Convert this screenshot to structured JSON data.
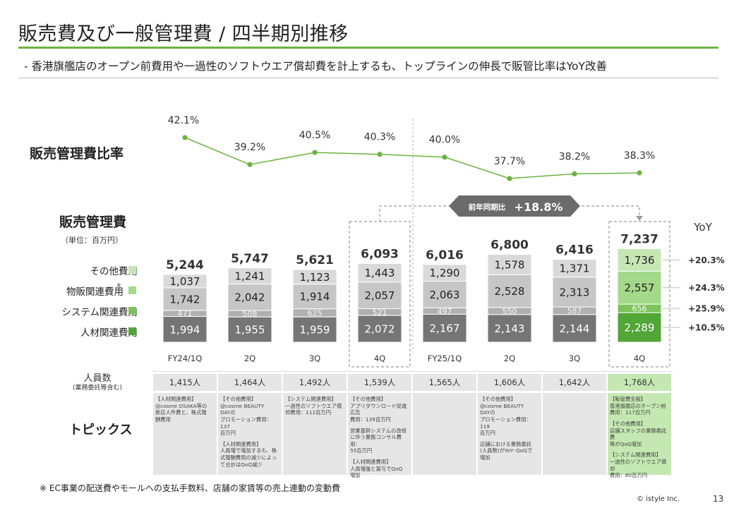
{
  "header": {
    "title": "販売費及び一般管理費 / 四半期別推移",
    "subtitle": "-  香港旗艦店のオープン前費用や一過性のソフトウエア償却費を計上するも、トップラインの伸長で販管比率はYoY改善"
  },
  "labels": {
    "ratio_section": "販売管理費比率",
    "sga_section": "販売管理費",
    "unit": "（単位：百万円）",
    "yoy_header": "YoY",
    "badge_prefix": "前年同期比",
    "badge_value": "+18.8%",
    "headcount_label": "人員数",
    "headcount_sub": "(業務委託等含む)",
    "topics_label": "トピックス"
  },
  "legend": [
    {
      "label": "その他費用",
      "color": "#c6e6b4"
    },
    {
      "label": "物販関連費用",
      "mark": "※",
      "color": "#a3d98a"
    },
    {
      "label": "システム関連費用",
      "color": "#7cc35c"
    },
    {
      "label": "人材関連費用",
      "color": "#52a537"
    }
  ],
  "chart_data": [
    {
      "type": "line",
      "title": "販売管理費比率",
      "categories": [
        "FY24/1Q",
        "2Q",
        "3Q",
        "4Q",
        "FY25/1Q",
        "2Q",
        "3Q",
        "4Q"
      ],
      "values": [
        42.1,
        39.2,
        40.5,
        40.3,
        40.0,
        37.7,
        38.2,
        38.3
      ],
      "value_labels": [
        "42.1%",
        "39.2%",
        "40.5%",
        "40.3%",
        "40.0%",
        "37.7%",
        "38.2%",
        "38.3%"
      ],
      "unit": "%",
      "color": "#6db33f"
    },
    {
      "type": "bar",
      "stacked": true,
      "title": "販売管理費",
      "unit": "百万円",
      "categories": [
        "FY24/1Q",
        "2Q",
        "3Q",
        "4Q",
        "FY25/1Q",
        "2Q",
        "3Q",
        "4Q"
      ],
      "totals": [
        "5,244",
        "5,747",
        "5,621",
        "6,093",
        "6,016",
        "6,800",
        "6,416",
        "7,237"
      ],
      "total_values": [
        5244,
        5747,
        5621,
        6093,
        6016,
        6800,
        6416,
        7237
      ],
      "series": [
        {
          "name": "人材関連費用",
          "values": [
            1994,
            1955,
            1959,
            2072,
            2167,
            2143,
            2144,
            2289
          ],
          "labels": [
            "1,994",
            "1,955",
            "1,959",
            "2,072",
            "2,167",
            "2,143",
            "2,144",
            "2,289"
          ]
        },
        {
          "name": "システム関連費用",
          "values": [
            471,
            508,
            625,
            521,
            497,
            550,
            587,
            656
          ],
          "labels": [
            "471",
            "508",
            "625",
            "521",
            "497",
            "550",
            "587",
            "656"
          ]
        },
        {
          "name": "物販関連費用",
          "values": [
            1742,
            2042,
            1914,
            2057,
            2063,
            2528,
            2313,
            2557
          ],
          "labels": [
            "1,742",
            "2,042",
            "1,914",
            "2,057",
            "2,063",
            "2,528",
            "2,313",
            "2,557"
          ]
        },
        {
          "name": "その他費用",
          "values": [
            1037,
            1241,
            1123,
            1443,
            1290,
            1578,
            1371,
            1736
          ],
          "labels": [
            "1,037",
            "1,241",
            "1,123",
            "1,443",
            "1,290",
            "1,578",
            "1,371",
            "1,736"
          ]
        }
      ],
      "yoy": [
        "+10.5%",
        "+25.9%",
        "+24.3%",
        "+20.3%"
      ],
      "colors": {
        "base": [
          "#757575",
          "#b0b0b0",
          "#c6c6c6",
          "#d9d9d9"
        ],
        "highlight": [
          "#52a537",
          "#7cc35c",
          "#a3d98a",
          "#c6e6b4"
        ]
      }
    }
  ],
  "table": {
    "headcount": [
      "1,415人",
      "1,464人",
      "1,492人",
      "1,539人",
      "1,565人",
      "1,606人",
      "1,642人",
      "1,768人"
    ],
    "topics": [
      [
        "【人材関連費用】",
        "@cosme OSAKA等の",
        "新店人件費と、株式報",
        "酬費用"
      ],
      [
        "【その他費用】",
        "@cosme BEAUTY",
        "DAYの",
        "プロモーション費用：137",
        "百万円",
        "",
        "【人材関連費用】",
        "人員増で増加するも、株",
        "式報酬費用の減少によっ",
        "て合計はQoQ減少"
      ],
      [
        "【システム関連費用】",
        "一過性のソフトウエア償",
        "却費用：112百万円"
      ],
      [
        "【その他費用】",
        "アプリダウンロード促進広告",
        "費用：139百万円",
        "",
        "営業基幹システムの改修",
        "に伴う業務コンサル費用：",
        "55百万円",
        "",
        "【人材関連費用】",
        "人員増強と賞与でQoQ",
        "増加"
      ],
      [],
      [
        "【その他費用】",
        "@cosme BEAUTY",
        "DAYの",
        "プロモーション費用：119",
        "百万円",
        "",
        "店舗における業務委託",
        "(人員数)がYoY･QoQで",
        "増加"
      ],
      [],
      [
        "【販管費全般】",
        "香港旗艦店のオープン前",
        "費用：117百万円",
        "",
        "【その他費用】",
        "店舗スタッフの業務委託費",
        "等がQoQ増加",
        "",
        "【システム関連費用】",
        "一過性のソフトウエア償却",
        "費用：80百万円"
      ]
    ]
  },
  "footer": {
    "footnote": "※ EC事業の配送費やモールへの支払手数料、店舗の家賃等の売上連動の変動費",
    "copyright": "© istyle Inc.",
    "page": "13"
  }
}
